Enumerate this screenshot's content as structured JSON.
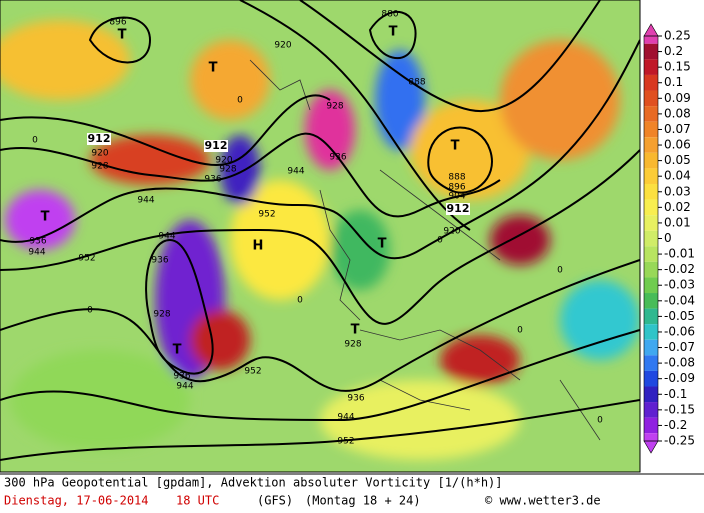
{
  "map": {
    "labels": [
      "896",
      "T",
      "920",
      "T",
      "880",
      "T",
      "888",
      "912",
      "920",
      "928",
      "912",
      "920",
      "928",
      "936",
      "944",
      "928",
      "936",
      "T",
      "888",
      "896",
      "904",
      "912",
      "920",
      "T",
      "936",
      "944",
      "952",
      "944",
      "952",
      "944",
      "936",
      "928",
      "T",
      "936",
      "944",
      "H",
      "T",
      "T",
      "928",
      "952",
      "936",
      "944",
      "952",
      "0",
      "0",
      "0",
      "0",
      "0",
      "0",
      "0",
      "0"
    ]
  },
  "colorbar": {
    "values": [
      0.25,
      0.2,
      0.15,
      0.1,
      0.09,
      0.08,
      0.07,
      0.06,
      0.05,
      0.04,
      0.03,
      0.02,
      0.01,
      0,
      -0.01,
      -0.02,
      -0.03,
      -0.04,
      -0.05,
      -0.06,
      -0.07,
      -0.08,
      -0.09,
      -0.1,
      -0.15,
      -0.2,
      -0.25
    ],
    "colors": [
      "#e040b0",
      "#a01030",
      "#c01828",
      "#d83820",
      "#e05020",
      "#e86a24",
      "#f08428",
      "#f5a030",
      "#f8b830",
      "#fccc38",
      "#fce040",
      "#f8ee50",
      "#e8f060",
      "#d0ec68",
      "#b8e460",
      "#98d858",
      "#70cc50",
      "#48bc58",
      "#30b890",
      "#30c4c8",
      "#40a8f0",
      "#3078f0",
      "#2048e0",
      "#3020c0",
      "#6020d0",
      "#9020e0",
      "#c040f0"
    ]
  },
  "footer": {
    "title": "300 hPa Geopotential [gpdam], Advektion absoluter Vorticity [1/(h*h)]",
    "date": "Dienstag, 17-06-2014",
    "time": "18 UTC",
    "model": "(GFS)",
    "run": "(Montag 18 + 24)",
    "copyright": "© www.wetter3.de"
  }
}
